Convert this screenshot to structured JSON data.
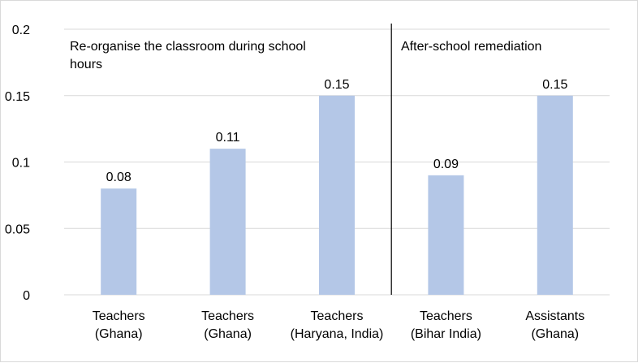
{
  "chart_data": {
    "type": "bar",
    "categories": [
      [
        "Teachers",
        "(Ghana)"
      ],
      [
        "Teachers",
        "(Ghana)"
      ],
      [
        "Teachers",
        "(Haryana, India)"
      ],
      [
        "Teachers",
        "(Bihar India)"
      ],
      [
        "Assistants",
        "(Ghana)"
      ]
    ],
    "values": [
      0.08,
      0.11,
      0.15,
      0.09,
      0.15
    ],
    "value_labels": [
      "0.08",
      "0.11",
      "0.15",
      "0.09",
      "0.15"
    ],
    "ylim": [
      0,
      0.2
    ],
    "yticks": [
      "0",
      "0.05",
      "0.1",
      "0.15",
      "0.2"
    ],
    "grid": true,
    "bar_color": "#b4c7e7",
    "annotations": [
      [
        "Re-organise the classroom during school",
        "hours"
      ],
      [
        "After-school remediation"
      ]
    ]
  }
}
